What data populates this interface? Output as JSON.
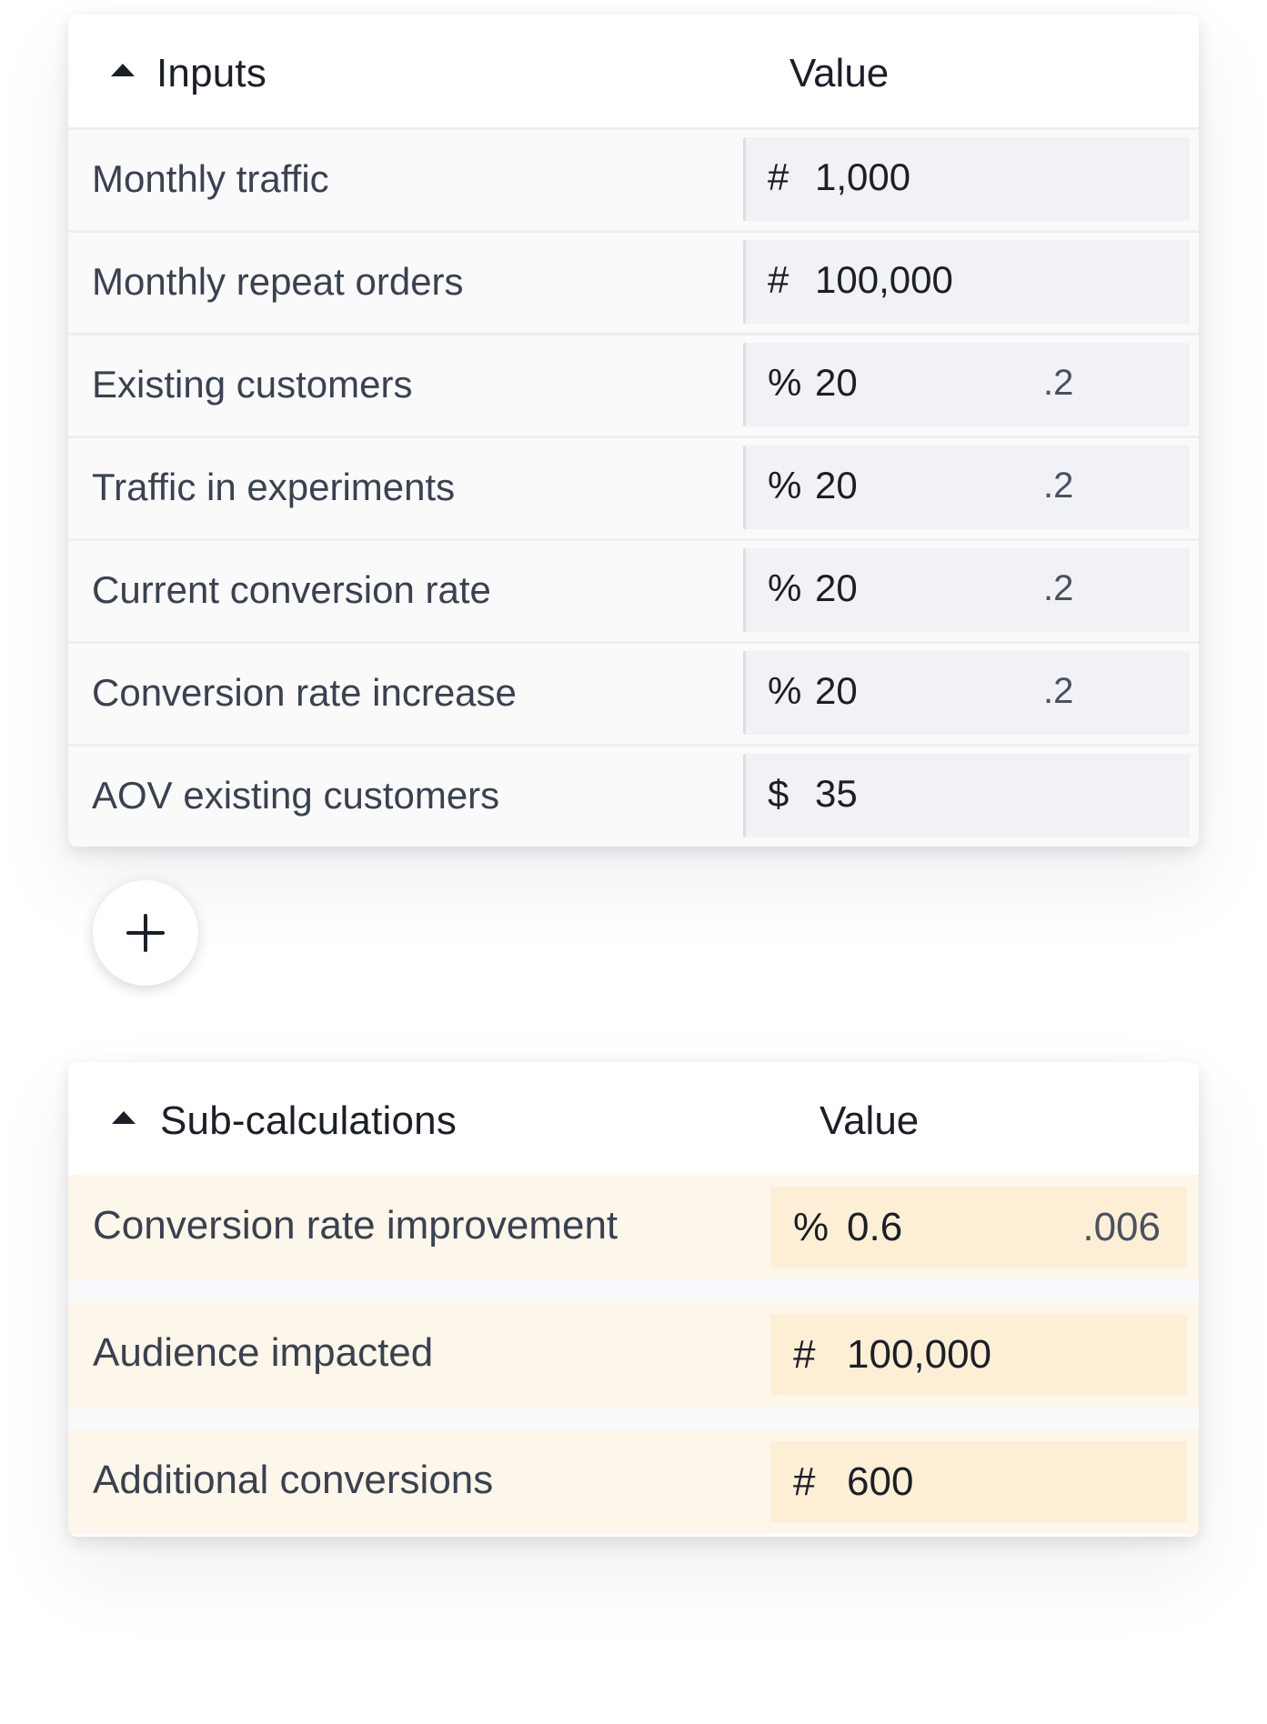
{
  "inputs": {
    "title": "Inputs",
    "value_header": "Value",
    "rows": [
      {
        "label": "Monthly traffic",
        "unit": "#",
        "value": "1,000",
        "decimal": ""
      },
      {
        "label": "Monthly repeat orders",
        "unit": "#",
        "value": "100,000",
        "decimal": ""
      },
      {
        "label": "Existing customers",
        "unit": "%",
        "value": "20",
        "decimal": ".2"
      },
      {
        "label": "Traffic in experiments",
        "unit": "%",
        "value": "20",
        "decimal": ".2"
      },
      {
        "label": "Current conversion rate",
        "unit": "%",
        "value": "20",
        "decimal": ".2"
      },
      {
        "label": "Conversion rate increase",
        "unit": "%",
        "value": "20",
        "decimal": ".2"
      },
      {
        "label": "AOV existing customers",
        "unit": "$",
        "value": "35",
        "decimal": ""
      }
    ]
  },
  "add_button": {
    "icon": "plus-icon"
  },
  "sub_calculations": {
    "title": "Sub-calculations",
    "value_header": "Value",
    "rows": [
      {
        "label": "Conversion rate improvement",
        "unit": "%",
        "value": "0.6",
        "decimal": ".006"
      },
      {
        "label": "Audience impacted",
        "unit": "#",
        "value": "100,000",
        "decimal": ""
      },
      {
        "label": "Additional conversions",
        "unit": "#",
        "value": "600",
        "decimal": ""
      }
    ]
  },
  "colors": {
    "text_primary": "#1b1f27",
    "text_label": "#3a4150",
    "input_cell_bg": "#f1f2f5",
    "subcalc_row_bg": "#fdf6ea",
    "subcalc_cell_bg": "#fdefd5"
  }
}
